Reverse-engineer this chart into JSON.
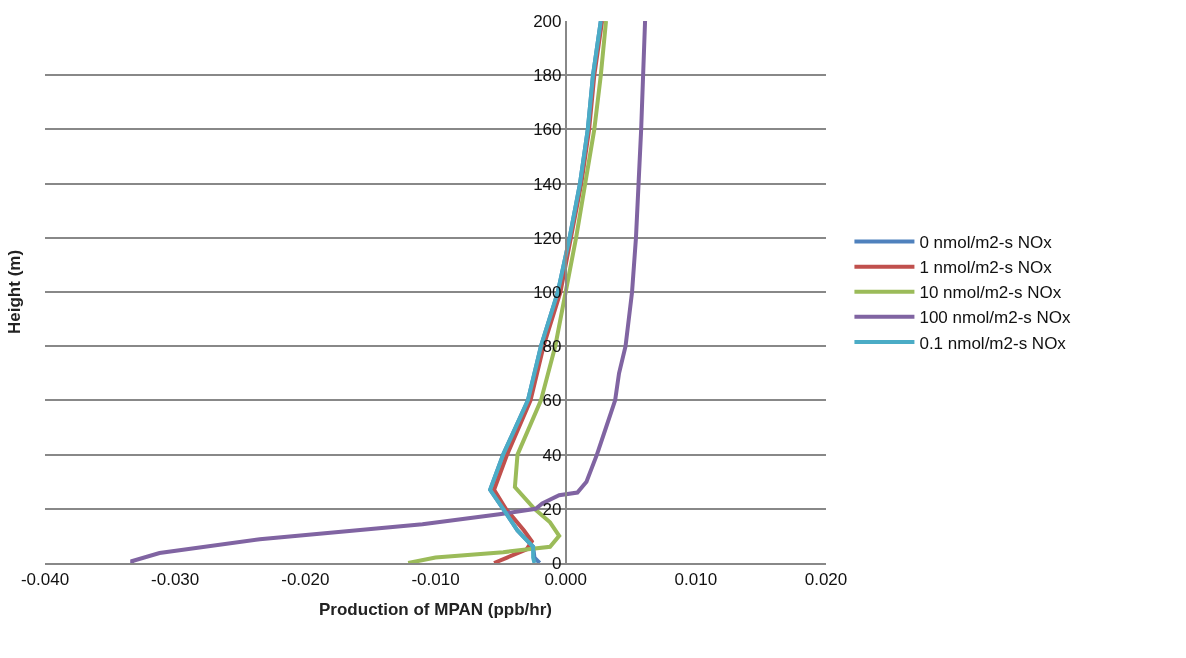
{
  "chart_data": {
    "type": "line",
    "xlabel": "Production of MPAN (ppb/hr)",
    "ylabel": "Height (m)",
    "xlim": [
      -0.04,
      0.02
    ],
    "xticks": [
      {
        "value": -0.04,
        "label": "-0.040"
      },
      {
        "value": -0.03,
        "label": "-0.030"
      },
      {
        "value": -0.02,
        "label": "-0.020"
      },
      {
        "value": -0.01,
        "label": "-0.010"
      },
      {
        "value": 0,
        "label": "0.000"
      },
      {
        "value": 0.01,
        "label": "0.010"
      },
      {
        "value": 0.02,
        "label": "0.020"
      }
    ],
    "ylim": [
      0,
      200
    ],
    "yticks": [
      0,
      20,
      40,
      60,
      80,
      100,
      120,
      140,
      160,
      180,
      200
    ],
    "grid": "y",
    "legend": "right",
    "marker": "none",
    "line_style": "solid",
    "series": [
      {
        "name": "0 nmol/m2-s NOx",
        "color": "#4f81bd",
        "x": [
          -0.002,
          -0.0024,
          -0.0025,
          -0.0037,
          -0.0048,
          -0.0058,
          -0.0048,
          -0.0029,
          -0.0019,
          -0.0006,
          0.0003,
          0.0011,
          0.0017,
          0.0021,
          0.0027
        ],
        "values": [
          0,
          2,
          6,
          12,
          20,
          27,
          40,
          60,
          80,
          100,
          120,
          140,
          160,
          180,
          200
        ]
      },
      {
        "name": "1 nmol/m2-s NOx",
        "color": "#c0504d",
        "x": [
          -0.0055,
          -0.0045,
          -0.003,
          -0.0026,
          -0.0032,
          -0.0046,
          -0.0055,
          -0.0045,
          -0.0027,
          -0.0017,
          -0.0004,
          0.0004,
          0.0012,
          0.0018,
          0.0022,
          0.0028
        ],
        "values": [
          0,
          2,
          5,
          8,
          12,
          20,
          27,
          40,
          60,
          80,
          100,
          120,
          140,
          160,
          180,
          200
        ]
      },
      {
        "name": "10 nmol/m2-s NOx",
        "color": "#9bbb59",
        "x": [
          -0.0121,
          -0.01,
          -0.0048,
          -0.0012,
          -0.0005,
          -0.0012,
          -0.0024,
          -0.0039,
          -0.0037,
          -0.0019,
          -0.0008,
          0.0,
          0.0008,
          0.0015,
          0.0022,
          0.0027,
          0.0031
        ],
        "values": [
          0,
          2,
          4,
          6,
          10,
          15,
          20,
          28,
          40,
          60,
          80,
          100,
          120,
          140,
          160,
          180,
          200
        ]
      },
      {
        "name": "100 nmol/m2-s NOx",
        "color": "#8064a2",
        "x": [
          -0.0333,
          -0.0333,
          -0.0312,
          -0.0235,
          -0.011,
          -0.0051,
          -0.0023,
          -0.0018,
          -0.0005,
          0.0009,
          0.0016,
          0.0024,
          0.0031,
          0.0038,
          0.0041,
          0.0046,
          0.0051,
          0.0054,
          0.0056,
          0.0058,
          0.0061
        ],
        "values": [
          0,
          0.7,
          3.7,
          8.8,
          14.3,
          18,
          20,
          22,
          25,
          26,
          30,
          40,
          50,
          60,
          70,
          80,
          100,
          120,
          140,
          160,
          200
        ]
      },
      {
        "name": "0.1 nmol/m2-s NOx",
        "color": "#4bacc6",
        "x": [
          -0.0024,
          -0.0025,
          -0.0025,
          -0.0037,
          -0.0048,
          -0.0058,
          -0.0048,
          -0.0029,
          -0.0019,
          -0.0006,
          0.0003,
          0.0011,
          0.0017,
          0.0021,
          0.0027
        ],
        "values": [
          0,
          2,
          6,
          12,
          20,
          27,
          40,
          60,
          80,
          100,
          120,
          140,
          160,
          180,
          200
        ]
      }
    ]
  }
}
